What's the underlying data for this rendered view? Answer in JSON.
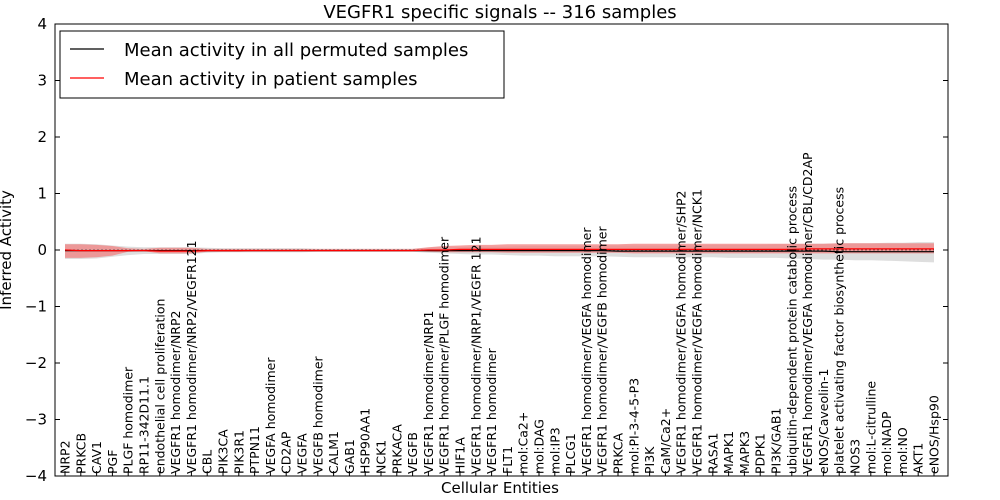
{
  "chart_data": {
    "type": "line",
    "title": "VEGFR1 specific signals -- 316 samples",
    "xlabel": "Cellular Entities",
    "ylabel": "Inferred Activity",
    "ylim": [
      -4,
      4
    ],
    "yticks": [
      -4,
      -3,
      -2,
      -1,
      0,
      1,
      2,
      3,
      4
    ],
    "grid": false,
    "legend_position": "top-left",
    "categories": [
      "NRP2",
      "PRKCB",
      "CAV1",
      "PGF",
      "PLGF homodimer",
      "RP11-342D11.1",
      "endothelial cell proliferation",
      "VEGFR1 homodimer/NRP2",
      "VEGFR1 homodimer/NRP2/VEGFR121",
      "CBL",
      "PIK3CA",
      "PIK3R1",
      "PTPN11",
      "VEGFA homodimer",
      "CD2AP",
      "VEGFA",
      "VEGFB homodimer",
      "CALM1",
      "GAB1",
      "HSP90AA1",
      "NCK1",
      "PRKACA",
      "VEGFB",
      "VEGFR1 homodimer/NRP1",
      "VEGFR1 homodimer/PLGF homodimer",
      "HIF1A",
      "VEGFR1 homodimer/NRP1/VEGFR 121",
      "VEGFR1 homodimer",
      "FLT1",
      "mol:Ca2+",
      "mol:DAG",
      "mol:IP3",
      "PLCG1",
      "VEGFR1 homodimer/VEGFA homodimer",
      "VEGFR1 homodimer/VEGFB homodimer",
      "PRKCA",
      "mol:PI-3-4-5-P3",
      "PI3K",
      "CaM/Ca2+",
      "VEGFR1 homodimer/VEGFA homodimer/SHP2",
      "VEGFR1 homodimer/VEGFA homodimer/NCK1",
      "RASA1",
      "MAPK1",
      "MAPK3",
      "PDPK1",
      "PI3K/GAB1",
      "ubiquitin-dependent protein catabolic process",
      "VEGFR1 homodimer/VEGFA homodimer/CBL/CD2AP",
      "eNOS/Caveolin-1",
      "platelet activating factor biosynthetic process",
      "NOS3",
      "mol:L-citrulline",
      "mol:NADP",
      "mol:NO",
      "AKT1",
      "eNOS/Hsp90"
    ],
    "series": [
      {
        "name": "Mean activity in all permuted samples",
        "color": "#000000",
        "band_color": "#c8c8c8",
        "values": [
          -0.01,
          -0.01,
          -0.01,
          -0.01,
          -0.01,
          -0.01,
          -0.01,
          -0.01,
          -0.01,
          -0.01,
          -0.01,
          -0.01,
          -0.01,
          -0.01,
          -0.01,
          -0.01,
          -0.01,
          -0.01,
          -0.01,
          -0.01,
          -0.01,
          -0.01,
          -0.01,
          -0.01,
          -0.01,
          -0.01,
          -0.01,
          -0.01,
          -0.01,
          -0.01,
          -0.01,
          -0.01,
          -0.01,
          -0.01,
          -0.01,
          -0.02,
          -0.02,
          -0.02,
          -0.02,
          -0.02,
          -0.02,
          -0.02,
          -0.02,
          -0.02,
          -0.02,
          -0.02,
          -0.02,
          -0.02,
          -0.02,
          -0.03,
          -0.03,
          -0.03,
          -0.03,
          -0.03,
          -0.03,
          -0.03
        ],
        "lower": [
          -0.16,
          -0.16,
          -0.15,
          -0.12,
          -0.09,
          -0.07,
          -0.07,
          -0.07,
          -0.07,
          -0.05,
          -0.04,
          -0.04,
          -0.04,
          -0.04,
          -0.04,
          -0.04,
          -0.03,
          -0.03,
          -0.03,
          -0.03,
          -0.03,
          -0.03,
          -0.03,
          -0.05,
          -0.06,
          -0.07,
          -0.08,
          -0.08,
          -0.09,
          -0.1,
          -0.1,
          -0.11,
          -0.11,
          -0.11,
          -0.11,
          -0.12,
          -0.13,
          -0.13,
          -0.13,
          -0.13,
          -0.13,
          -0.13,
          -0.14,
          -0.14,
          -0.14,
          -0.14,
          -0.15,
          -0.16,
          -0.17,
          -0.17,
          -0.18,
          -0.18,
          -0.19,
          -0.2,
          -0.21,
          -0.22
        ],
        "upper": [
          0.11,
          0.11,
          0.1,
          0.08,
          0.06,
          0.05,
          0.05,
          0.05,
          0.05,
          0.04,
          0.03,
          0.03,
          0.03,
          0.03,
          0.03,
          0.03,
          0.02,
          0.02,
          0.02,
          0.02,
          0.02,
          0.02,
          0.02,
          0.04,
          0.05,
          0.05,
          0.06,
          0.06,
          0.06,
          0.07,
          0.07,
          0.07,
          0.07,
          0.07,
          0.08,
          0.08,
          0.08,
          0.08,
          0.08,
          0.08,
          0.08,
          0.09,
          0.09,
          0.09,
          0.09,
          0.1,
          0.1,
          0.11,
          0.11,
          0.12,
          0.12,
          0.12,
          0.13,
          0.13,
          0.14,
          0.14
        ]
      },
      {
        "name": "Mean activity in patient samples",
        "color": "#ff0000",
        "band_color": "#f08080",
        "values": [
          0.0,
          -0.01,
          -0.01,
          -0.01,
          -0.01,
          -0.01,
          -0.02,
          -0.02,
          -0.02,
          -0.01,
          -0.01,
          -0.01,
          -0.01,
          -0.01,
          -0.01,
          -0.01,
          -0.01,
          -0.01,
          -0.01,
          -0.01,
          -0.01,
          -0.01,
          -0.01,
          0.0,
          0.0,
          0.01,
          0.01,
          0.01,
          0.01,
          0.01,
          0.01,
          0.01,
          0.01,
          0.01,
          0.01,
          0.01,
          0.01,
          0.01,
          0.01,
          0.01,
          0.01,
          0.01,
          0.01,
          0.01,
          0.01,
          0.01,
          0.01,
          0.02,
          0.02,
          0.02,
          0.02,
          0.02,
          0.02,
          0.02,
          0.02,
          0.02
        ],
        "lower": [
          -0.14,
          -0.14,
          -0.13,
          -0.1,
          -0.03,
          -0.02,
          -0.06,
          -0.06,
          -0.06,
          -0.03,
          -0.03,
          -0.03,
          -0.02,
          -0.02,
          -0.02,
          -0.02,
          -0.02,
          -0.02,
          -0.02,
          -0.02,
          -0.02,
          -0.02,
          -0.02,
          -0.03,
          -0.04,
          -0.04,
          -0.04,
          -0.04,
          -0.05,
          -0.05,
          -0.05,
          -0.05,
          -0.05,
          -0.05,
          -0.05,
          -0.05,
          -0.06,
          -0.06,
          -0.06,
          -0.06,
          -0.06,
          -0.06,
          -0.06,
          -0.06,
          -0.06,
          -0.06,
          -0.06,
          -0.06,
          -0.06,
          -0.06,
          -0.06,
          -0.06,
          -0.06,
          -0.06,
          -0.06,
          -0.06
        ],
        "upper": [
          0.1,
          0.1,
          0.09,
          0.07,
          0.03,
          0.02,
          0.04,
          0.04,
          0.04,
          0.02,
          0.02,
          0.02,
          0.02,
          0.02,
          0.02,
          0.02,
          0.02,
          0.02,
          0.02,
          0.02,
          0.02,
          0.02,
          0.02,
          0.05,
          0.07,
          0.08,
          0.09,
          0.09,
          0.1,
          0.1,
          0.1,
          0.1,
          0.1,
          0.1,
          0.1,
          0.1,
          0.11,
          0.11,
          0.11,
          0.11,
          0.11,
          0.11,
          0.11,
          0.11,
          0.11,
          0.11,
          0.11,
          0.11,
          0.11,
          0.12,
          0.12,
          0.12,
          0.12,
          0.12,
          0.12,
          0.12
        ]
      }
    ]
  }
}
